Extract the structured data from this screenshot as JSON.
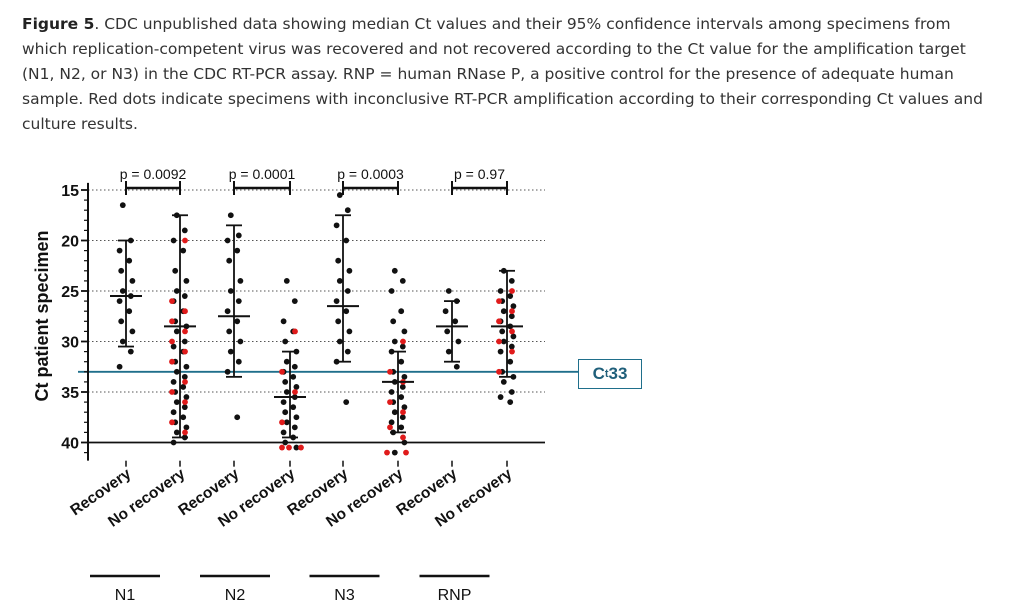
{
  "caption": {
    "figure_label": "Figure 5",
    "text": ". CDC unpublished data showing median Ct values and their 95% confidence intervals among specimens from which replication-competent virus was recovered and not recovered according to the Ct value for the amplification target (N1, N2, or N3) in the CDC RT-PCR assay. RNP = human RNase P, a positive control for the presence of adequate human sample. Red dots indicate specimens with inconclusive RT-PCR amplification according to their corresponding Ct values and culture results."
  },
  "threshold": {
    "label_main": "C",
    "label_sub": "t",
    "label_value": " 33",
    "value": 33,
    "color": "#1f6f8b"
  },
  "colors": {
    "dot": "#111111",
    "inconclusive": "#e01b1b",
    "axis": "#111111",
    "grid": "#555555"
  },
  "chart_data": {
    "type": "scatter",
    "ylabel": "Ct patient specimen",
    "ylim": [
      41,
      14
    ],
    "y_ticks": [
      "15",
      "20",
      "25",
      "30",
      "35",
      "40"
    ],
    "y_tick_values": [
      15,
      20,
      25,
      30,
      35,
      40
    ],
    "categories": [
      "Recovery",
      "No recovery",
      "Recovery",
      "No recovery",
      "Recovery",
      "No recovery",
      "Recovery",
      "No recovery"
    ],
    "groups": [
      "N1",
      "N2",
      "N3",
      "RNP"
    ],
    "p_values": [
      "p = 0.0092",
      "p = 0.0001",
      "p = 0.0003",
      "p = 0.97"
    ],
    "summary": [
      {
        "median": 25.5,
        "ci": [
          20,
          30.5
        ]
      },
      {
        "median": 28.5,
        "ci": [
          17.5,
          39.5
        ]
      },
      {
        "median": 27.5,
        "ci": [
          18.5,
          33.5
        ]
      },
      {
        "median": 35.5,
        "ci": [
          31,
          39.5
        ]
      },
      {
        "median": 26.5,
        "ci": [
          17.5,
          32
        ]
      },
      {
        "median": 34,
        "ci": [
          31,
          39
        ]
      },
      {
        "median": 28.5,
        "ci": [
          26,
          32
        ]
      },
      {
        "median": 28.5,
        "ci": [
          23,
          33.5
        ]
      }
    ],
    "points": [
      [
        16.5,
        20,
        21,
        22,
        23,
        24,
        25,
        25.5,
        26,
        27,
        28,
        29,
        30,
        31,
        32.5
      ],
      [
        17.5,
        19,
        20,
        21,
        23,
        24,
        25,
        25.5,
        26,
        27,
        28,
        28.5,
        29,
        30,
        30.5,
        31,
        32,
        32.5,
        33,
        33.5,
        34,
        34.5,
        35,
        35.5,
        36,
        36.5,
        37,
        37.5,
        38,
        38.5,
        39,
        39.5,
        40
      ],
      [
        17.5,
        19.5,
        20,
        21,
        22,
        24,
        25,
        26,
        27,
        28,
        29,
        30,
        31,
        32,
        33,
        37.5
      ],
      [
        24,
        26,
        28,
        29,
        30,
        31,
        32,
        32.5,
        33,
        33.5,
        34,
        34.5,
        35,
        35.5,
        36,
        36.5,
        37,
        37.5,
        38,
        38.5,
        39,
        39.5,
        40,
        40.5
      ],
      [
        15.5,
        17,
        18.5,
        20,
        22,
        23,
        24,
        25,
        26,
        27,
        28,
        29,
        30,
        31,
        32,
        36
      ],
      [
        23,
        24,
        25,
        27,
        28,
        29,
        30,
        30.5,
        31,
        32,
        33,
        33.5,
        34,
        34.5,
        35,
        35.5,
        36,
        36.5,
        37,
        37.5,
        38,
        38.5,
        39,
        40,
        41
      ],
      [
        25,
        26,
        27,
        28,
        29,
        30,
        31,
        32.5
      ],
      [
        23,
        24,
        25,
        25.5,
        26,
        26.5,
        27,
        27.5,
        28,
        28.5,
        29,
        29.5,
        30,
        30.5,
        31,
        32,
        33,
        33.5,
        34,
        35,
        35.5,
        36
      ]
    ],
    "inconclusive_points": [
      [],
      [
        20,
        26,
        27,
        28,
        29,
        30,
        31,
        32,
        34,
        35,
        36,
        38,
        39
      ],
      [],
      [
        29,
        33,
        35,
        38,
        40.5,
        40.5,
        40.5
      ],
      [],
      [
        30,
        33,
        34,
        36,
        37,
        38.5,
        39.5,
        41,
        41
      ],
      [],
      [
        25,
        26,
        27,
        28,
        29,
        30,
        31,
        33
      ]
    ]
  }
}
